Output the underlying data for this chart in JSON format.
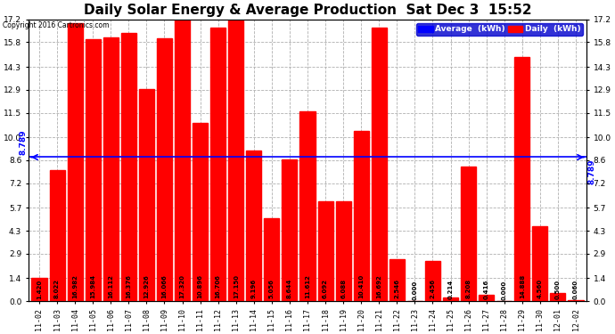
{
  "title": "Daily Solar Energy & Average Production  Sat Dec 3  15:52",
  "copyright": "Copyright 2016 Cartronics.com",
  "categories": [
    "11-02",
    "11-03",
    "11-04",
    "11-05",
    "11-06",
    "11-07",
    "11-08",
    "11-09",
    "11-10",
    "11-11",
    "11-12",
    "11-13",
    "11-14",
    "11-15",
    "11-16",
    "11-17",
    "11-18",
    "11-19",
    "11-20",
    "11-21",
    "11-22",
    "11-23",
    "11-24",
    "11-25",
    "11-26",
    "11-27",
    "11-28",
    "11-29",
    "11-30",
    "12-01",
    "12-02"
  ],
  "values": [
    1.42,
    8.022,
    16.982,
    15.984,
    16.112,
    16.376,
    12.926,
    16.066,
    17.32,
    10.896,
    16.706,
    17.15,
    9.196,
    5.056,
    8.644,
    11.612,
    6.092,
    6.088,
    10.41,
    16.692,
    2.546,
    0.0,
    2.456,
    0.214,
    8.208,
    0.416,
    0.0,
    14.888,
    4.56,
    0.5,
    0.06
  ],
  "average": 8.789,
  "bar_color": "#ff0000",
  "avg_line_color": "#0000ff",
  "background_color": "#ffffff",
  "plot_bg_color": "#ffffff",
  "grid_color": "#b0b0b0",
  "ylim": [
    0.0,
    17.2
  ],
  "yticks": [
    0.0,
    1.4,
    2.9,
    4.3,
    5.7,
    7.2,
    8.6,
    10.0,
    11.5,
    12.9,
    14.3,
    15.8,
    17.2
  ],
  "title_fontsize": 11,
  "legend_avg_label": "Average  (kWh)",
  "legend_daily_label": "Daily  (kWh)"
}
